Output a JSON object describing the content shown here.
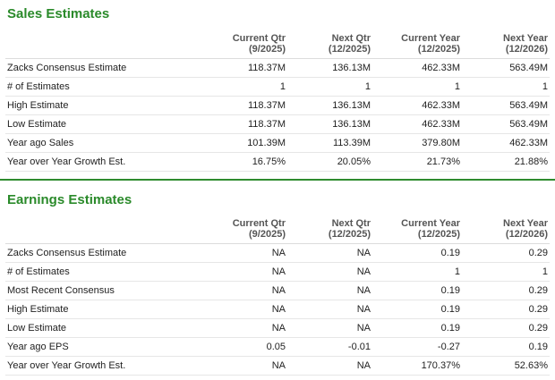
{
  "sales": {
    "title": "Sales Estimates",
    "columns": [
      {
        "line1": "Current Qtr",
        "line2": "(9/2025)"
      },
      {
        "line1": "Next Qtr",
        "line2": "(12/2025)"
      },
      {
        "line1": "Current Year",
        "line2": "(12/2025)"
      },
      {
        "line1": "Next Year",
        "line2": "(12/2026)"
      }
    ],
    "rows": [
      {
        "label": "Zacks Consensus Estimate",
        "values": [
          "118.37M",
          "136.13M",
          "462.33M",
          "563.49M"
        ]
      },
      {
        "label": "# of Estimates",
        "values": [
          "1",
          "1",
          "1",
          "1"
        ]
      },
      {
        "label": "High Estimate",
        "values": [
          "118.37M",
          "136.13M",
          "462.33M",
          "563.49M"
        ]
      },
      {
        "label": "Low Estimate",
        "values": [
          "118.37M",
          "136.13M",
          "462.33M",
          "563.49M"
        ]
      },
      {
        "label": "Year ago Sales",
        "values": [
          "101.39M",
          "113.39M",
          "379.80M",
          "462.33M"
        ]
      },
      {
        "label": "Year over Year Growth Est.",
        "values": [
          "16.75%",
          "20.05%",
          "21.73%",
          "21.88%"
        ]
      }
    ]
  },
  "earnings": {
    "title": "Earnings Estimates",
    "columns": [
      {
        "line1": "Current Qtr",
        "line2": "(9/2025)"
      },
      {
        "line1": "Next Qtr",
        "line2": "(12/2025)"
      },
      {
        "line1": "Current Year",
        "line2": "(12/2025)"
      },
      {
        "line1": "Next Year",
        "line2": "(12/2026)"
      }
    ],
    "rows": [
      {
        "label": "Zacks Consensus Estimate",
        "values": [
          "NA",
          "NA",
          "0.19",
          "0.29"
        ]
      },
      {
        "label": "# of Estimates",
        "values": [
          "NA",
          "NA",
          "1",
          "1"
        ]
      },
      {
        "label": "Most Recent Consensus",
        "values": [
          "NA",
          "NA",
          "0.19",
          "0.29"
        ]
      },
      {
        "label": "High Estimate",
        "values": [
          "NA",
          "NA",
          "0.19",
          "0.29"
        ]
      },
      {
        "label": "Low Estimate",
        "values": [
          "NA",
          "NA",
          "0.19",
          "0.29"
        ]
      },
      {
        "label": "Year ago EPS",
        "values": [
          "0.05",
          "-0.01",
          "-0.27",
          "0.19"
        ]
      },
      {
        "label": "Year over Year Growth Est.",
        "values": [
          "NA",
          "NA",
          "170.37%",
          "52.63%"
        ]
      }
    ]
  },
  "colors": {
    "accent": "#2a8a2a",
    "divider": "#2e8b2e"
  }
}
